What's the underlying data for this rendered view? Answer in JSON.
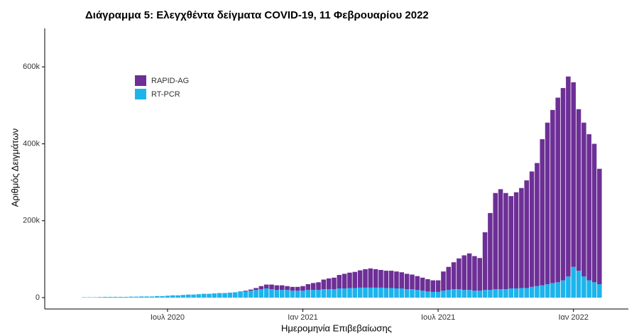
{
  "chart_data": {
    "type": "stacked-bar",
    "title": "Διάγραμμα 5: Ελεγχθέντα δείγματα COVID-19, 11 Φεβρουαρίου 2022",
    "x_label": "Ημερομηνία Επιβεβαίωσης",
    "y_label": "Αριθμός Δειγμάτων",
    "categories": [
      null,
      null,
      null,
      null,
      null,
      null,
      null,
      null,
      null,
      null,
      null,
      null,
      null,
      null,
      null,
      null,
      "Ιουλ 2020",
      null,
      null,
      null,
      null,
      null,
      null,
      null,
      null,
      null,
      null,
      null,
      null,
      null,
      null,
      null,
      null,
      null,
      null,
      null,
      null,
      null,
      null,
      null,
      null,
      null,
      "Ιαν 2021",
      null,
      null,
      null,
      null,
      null,
      null,
      null,
      null,
      null,
      null,
      null,
      null,
      null,
      null,
      null,
      null,
      null,
      null,
      null,
      null,
      null,
      null,
      null,
      null,
      null,
      "Ιουλ 2021",
      null,
      null,
      null,
      null,
      null,
      null,
      null,
      null,
      null,
      null,
      null,
      null,
      null,
      null,
      null,
      null,
      null,
      null,
      null,
      null,
      null,
      null,
      null,
      null,
      null,
      "Ιαν 2022",
      null,
      null,
      null,
      null,
      null
    ],
    "series": [
      {
        "name": "RT-PCR",
        "color": "#1db4ec",
        "values": [
          1000,
          1000,
          1000,
          1500,
          2000,
          2000,
          2000,
          2000,
          2000,
          2500,
          2500,
          3000,
          3000,
          3000,
          4000,
          4000,
          5000,
          6000,
          6000,
          7000,
          8000,
          8000,
          9000,
          10000,
          10000,
          11000,
          12000,
          12000,
          13000,
          14000,
          15000,
          16000,
          18000,
          20000,
          22000,
          24000,
          22000,
          20000,
          20000,
          20000,
          18000,
          18000,
          18000,
          20000,
          20000,
          20000,
          22000,
          22000,
          22000,
          24000,
          24000,
          25000,
          25000,
          26000,
          26000,
          26000,
          26000,
          26000,
          25000,
          25000,
          24000,
          24000,
          22000,
          22000,
          20000,
          18000,
          16000,
          15000,
          15000,
          18000,
          20000,
          22000,
          22000,
          20000,
          20000,
          18000,
          18000,
          20000,
          20000,
          22000,
          22000,
          22000,
          24000,
          24000,
          25000,
          25000,
          28000,
          30000,
          32000,
          35000,
          38000,
          40000,
          45000,
          55000,
          80000,
          70000,
          55000,
          45000,
          40000,
          35000
        ]
      },
      {
        "name": "RAPID-AG",
        "color": "#6d2f96",
        "values": [
          0,
          0,
          0,
          0,
          0,
          0,
          0,
          0,
          0,
          0,
          0,
          0,
          0,
          0,
          0,
          0,
          0,
          0,
          0,
          0,
          0,
          0,
          0,
          0,
          0,
          0,
          0,
          0,
          0,
          0,
          1000,
          2000,
          3000,
          5000,
          8000,
          10000,
          12000,
          12000,
          12000,
          10000,
          10000,
          10000,
          12000,
          15000,
          18000,
          20000,
          25000,
          28000,
          30000,
          35000,
          38000,
          40000,
          42000,
          45000,
          48000,
          50000,
          48000,
          46000,
          45000,
          45000,
          44000,
          42000,
          40000,
          38000,
          36000,
          34000,
          32000,
          30000,
          30000,
          50000,
          60000,
          70000,
          80000,
          90000,
          95000,
          90000,
          85000,
          150000,
          200000,
          250000,
          260000,
          250000,
          240000,
          250000,
          260000,
          280000,
          300000,
          320000,
          380000,
          420000,
          450000,
          480000,
          500000,
          520000,
          480000,
          420000,
          400000,
          380000,
          360000,
          300000
        ]
      }
    ],
    "ylim": [
      0,
      700000
    ],
    "yticks": [
      0,
      {
        "value": 200000,
        "label": "200k"
      },
      {
        "value": 400000,
        "label": "400k"
      },
      {
        "value": 600000,
        "label": "600k"
      }
    ],
    "legend": "upper-left"
  }
}
